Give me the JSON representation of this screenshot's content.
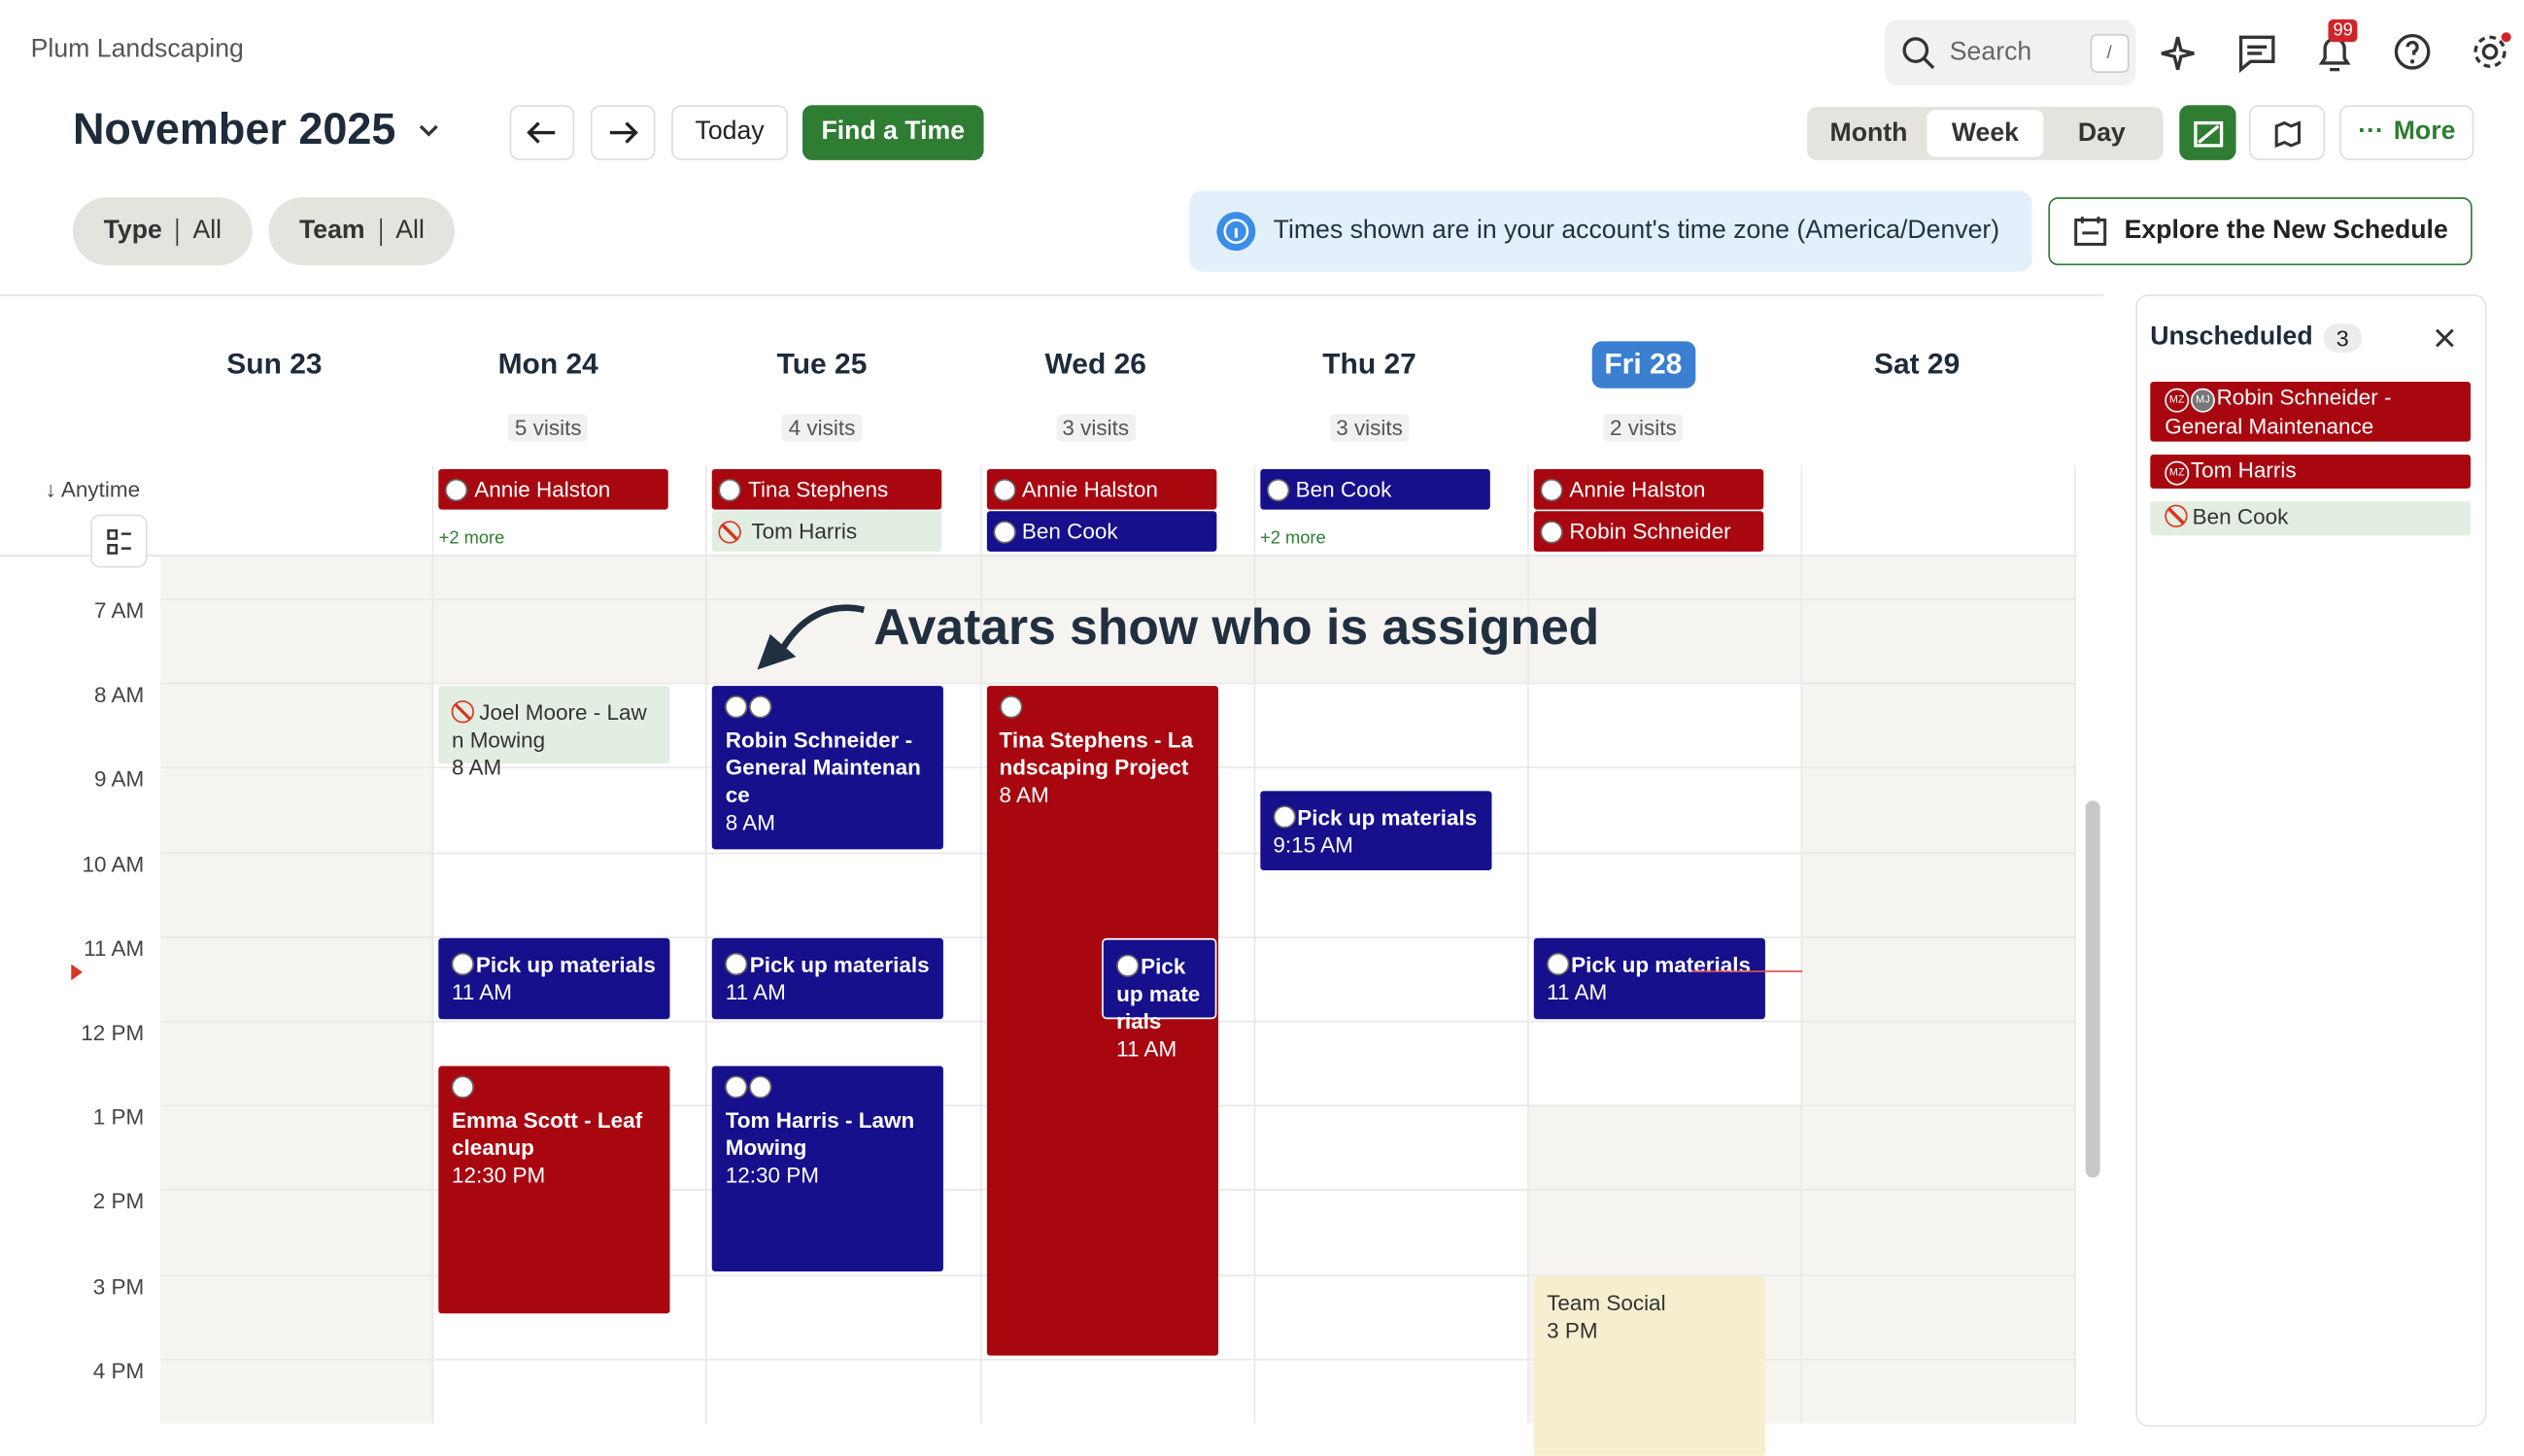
{
  "header": {
    "brand": "Plum Landscaping",
    "search": "Search",
    "search_shortcut": "/",
    "notifications": "99",
    "period": "November 2025",
    "today": "Today",
    "find_time": "Find a Time",
    "views": [
      "Month",
      "Week",
      "Day"
    ],
    "active_view": "Week",
    "more": "More"
  },
  "filters": [
    {
      "label": "Type",
      "value": "All"
    },
    {
      "label": "Team",
      "value": "All"
    }
  ],
  "timezone_note": "Times shown are in your account's time zone (America/Denver)",
  "explore": "Explore the New Schedule",
  "calendar": {
    "days": [
      {
        "label": "Sun 23"
      },
      {
        "label": "Mon 24",
        "visits": "5 visits"
      },
      {
        "label": "Tue 25",
        "visits": "4 visits"
      },
      {
        "label": "Wed 26",
        "visits": "3 visits"
      },
      {
        "label": "Thu 27",
        "visits": "3 visits"
      },
      {
        "label": "Fri 28",
        "visits": "2 visits",
        "today": true
      },
      {
        "label": "Sat 29"
      }
    ],
    "anytime_label": "Anytime",
    "hours": [
      "7 AM",
      "8 AM",
      "9 AM",
      "10 AM",
      "11 AM",
      "12 PM",
      "1 PM",
      "2 PM",
      "3 PM",
      "4 PM"
    ],
    "anytime": [
      {
        "day": 1,
        "title": "Annie Halston",
        "color": "#a80710"
      },
      {
        "day": 2,
        "title": "Tina Stephens",
        "color": "#a80710"
      },
      {
        "day": 2,
        "title": "Tom Harris",
        "color": "#e3eee2",
        "unassigned": true
      },
      {
        "day": 3,
        "title": "Annie Halston",
        "color": "#a80710"
      },
      {
        "day": 3,
        "title": "Ben Cook",
        "color": "#16108c"
      },
      {
        "day": 4,
        "title": "Ben Cook",
        "color": "#16108c"
      },
      {
        "day": 5,
        "title": "Annie Halston",
        "color": "#a80710"
      },
      {
        "day": 5,
        "title": "Robin Schneider",
        "color": "#a80710"
      }
    ],
    "more_links": [
      {
        "day": 1,
        "label": "+2 more"
      },
      {
        "day": 4,
        "label": "+2 more"
      }
    ],
    "events": [
      {
        "day": 1,
        "title": "Joel Moore - Lawn Mowing",
        "time": "8 AM",
        "color": "#e3eee2",
        "unassigned": true
      },
      {
        "day": 1,
        "title": "Pick up materials",
        "time": "11 AM",
        "color": "#16108c"
      },
      {
        "day": 1,
        "title": "Emma Scott - Leaf cleanup",
        "time": "12:30 PM",
        "color": "#a80710"
      },
      {
        "day": 2,
        "title": "Robin Schneider - General Maintenance",
        "time": "8 AM",
        "color": "#16108c"
      },
      {
        "day": 2,
        "title": "Pick up materials",
        "time": "11 AM",
        "color": "#16108c"
      },
      {
        "day": 2,
        "title": "Tom Harris - Lawn Mowing",
        "time": "12:30 PM",
        "color": "#16108c"
      },
      {
        "day": 3,
        "title": "Tina Stephens - Landscaping Project",
        "time": "8 AM",
        "color": "#a80710"
      },
      {
        "day": 3,
        "title": "Pick up materials",
        "time": "11 AM",
        "color": "#16108c"
      },
      {
        "day": 4,
        "title": "Pick up materials",
        "time": "9:15 AM",
        "color": "#16108c"
      },
      {
        "day": 5,
        "title": "Pick up materials",
        "time": "11 AM",
        "color": "#16108c"
      },
      {
        "day": 5,
        "title": "Team Social",
        "time": "3 PM",
        "color": "#f6efcf"
      }
    ]
  },
  "annotation": "Avatars show who is assigned",
  "unscheduled": {
    "title": "Unscheduled",
    "count": 3,
    "items": [
      {
        "title": "Robin Schneider - General Maintenance",
        "initials": [
          "MZ",
          "MJ"
        ],
        "color": "#a80710"
      },
      {
        "title": "Tom Harris",
        "initials": [
          "MZ"
        ],
        "color": "#a80710"
      },
      {
        "title": "Ben Cook",
        "color": "#e3eee2",
        "unassigned": true
      }
    ]
  }
}
